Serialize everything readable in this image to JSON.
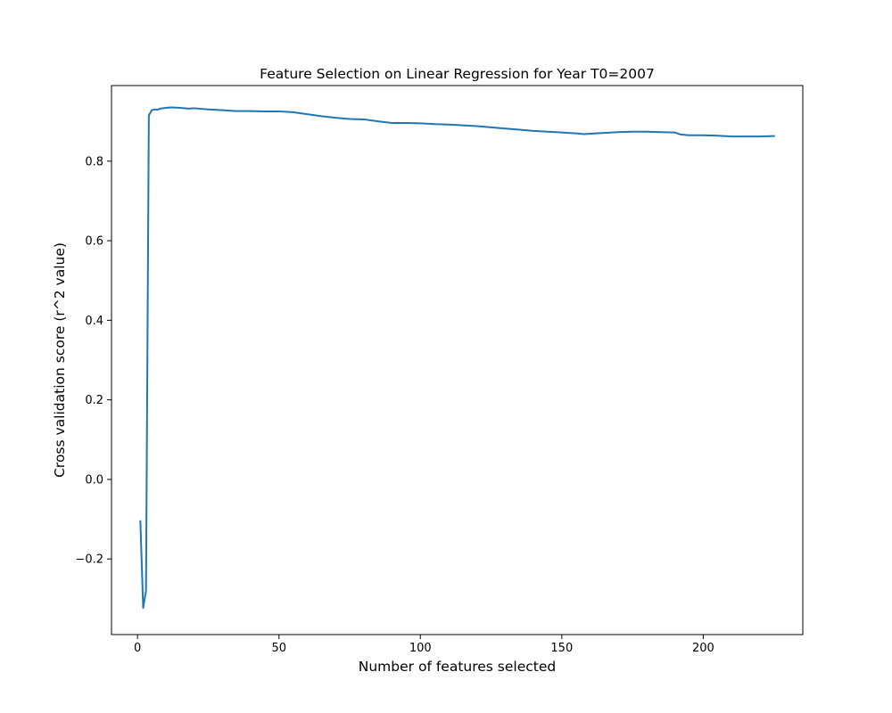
{
  "chart_data": {
    "type": "line",
    "title": "Feature Selection on Linear Regression for Year T0=2007",
    "xlabel": "Number of features selected",
    "ylabel": "Cross validation score (r^2 value)",
    "xlim": [
      -9.2,
      235.2
    ],
    "ylim": [
      -0.39,
      0.99
    ],
    "xticks": [
      0,
      50,
      100,
      150,
      200
    ],
    "xtick_labels": [
      "0",
      "50",
      "100",
      "150",
      "200"
    ],
    "yticks": [
      -0.2,
      0.0,
      0.2,
      0.4,
      0.6,
      0.8
    ],
    "ytick_labels": [
      "−0.2",
      "0.0",
      "0.2",
      "0.4",
      "0.6",
      "0.8"
    ],
    "grid": false,
    "series": [
      {
        "color": "#1f77b4",
        "x": [
          1,
          2,
          3,
          4,
          5,
          6,
          7,
          8,
          10,
          12,
          15,
          18,
          20,
          25,
          30,
          35,
          40,
          45,
          50,
          55,
          60,
          65,
          70,
          75,
          80,
          85,
          90,
          95,
          100,
          105,
          110,
          115,
          120,
          125,
          130,
          135,
          140,
          145,
          150,
          155,
          158,
          160,
          165,
          170,
          175,
          180,
          185,
          190,
          192,
          195,
          200,
          205,
          210,
          215,
          220,
          225
        ],
        "y": [
          -0.105,
          -0.323,
          -0.28,
          0.915,
          0.928,
          0.93,
          0.929,
          0.932,
          0.934,
          0.935,
          0.934,
          0.932,
          0.933,
          0.93,
          0.928,
          0.926,
          0.926,
          0.925,
          0.925,
          0.923,
          0.918,
          0.913,
          0.909,
          0.906,
          0.905,
          0.9,
          0.896,
          0.896,
          0.895,
          0.893,
          0.892,
          0.89,
          0.888,
          0.885,
          0.882,
          0.879,
          0.876,
          0.874,
          0.872,
          0.87,
          0.868,
          0.869,
          0.871,
          0.873,
          0.874,
          0.874,
          0.873,
          0.872,
          0.867,
          0.865,
          0.865,
          0.864,
          0.862,
          0.862,
          0.862,
          0.863
        ]
      }
    ]
  }
}
